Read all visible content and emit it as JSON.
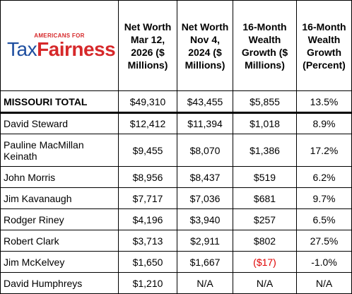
{
  "logo": {
    "top_text": "AMERICANS FOR",
    "word1": "Tax",
    "word2": "Fairness",
    "brand_blue": "#1f4fa0",
    "brand_red": "#d6282a"
  },
  "headers": {
    "net_worth_2026": "Net Worth Mar 12, 2026 ($ Millions)",
    "net_worth_2024": "Net Worth Nov 4, 2024 ($ Millions)",
    "growth_millions": "16-Month Wealth Growth ($ Millions)",
    "growth_percent": "16-Month Wealth Growth (Percent)"
  },
  "total": {
    "name": "MISSOURI TOTAL",
    "nw2026": "$49,310",
    "nw2024": "$43,455",
    "growth": "$5,855",
    "pct": "13.5%"
  },
  "rows": [
    {
      "name": "David Steward",
      "nw2026": "$12,412",
      "nw2024": "$11,394",
      "growth": "$1,018",
      "pct": "8.9%"
    },
    {
      "name": "Pauline MacMillan Keinath",
      "nw2026": "$9,455",
      "nw2024": "$8,070",
      "growth": "$1,386",
      "pct": "17.2%"
    },
    {
      "name": "John Morris",
      "nw2026": "$8,956",
      "nw2024": "$8,437",
      "growth": "$519",
      "pct": "6.2%"
    },
    {
      "name": "Jim Kavanaugh",
      "nw2026": "$7,717",
      "nw2024": "$7,036",
      "growth": "$681",
      "pct": "9.7%"
    },
    {
      "name": "Rodger Riney",
      "nw2026": "$4,196",
      "nw2024": "$3,940",
      "growth": "$257",
      "pct": "6.5%"
    },
    {
      "name": "Robert Clark",
      "nw2026": "$3,713",
      "nw2024": "$2,911",
      "growth": "$802",
      "pct": "27.5%"
    },
    {
      "name": "Jim McKelvey",
      "nw2026": "$1,650",
      "nw2024": "$1,667",
      "growth": "($17)",
      "pct": "-1.0%"
    },
    {
      "name": "David Humphreys",
      "nw2026": "$1,210",
      "nw2024": "N/A",
      "growth": "N/A",
      "pct": "N/A"
    }
  ],
  "negative_color": "#e00000"
}
